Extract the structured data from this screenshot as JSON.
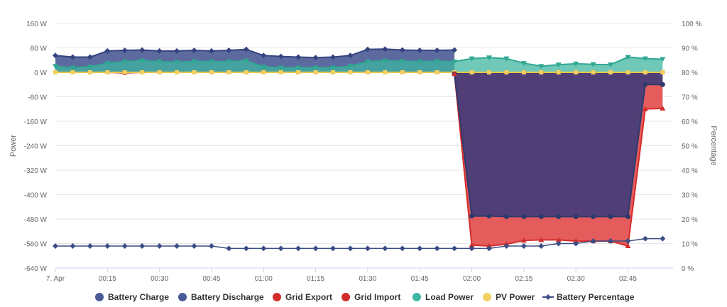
{
  "chart_data": {
    "type": "area",
    "title": "",
    "y_left": {
      "label": "Power",
      "range": [
        -640,
        160
      ],
      "ticks": [
        "160 W",
        "80 W",
        "0 W",
        "-80 W",
        "-160 W",
        "-240 W",
        "-320 W",
        "-400 W",
        "-480 W",
        "-560 W",
        "-640 W"
      ],
      "tick_values": [
        160,
        80,
        0,
        -80,
        -160,
        -240,
        -320,
        -400,
        -480,
        -560,
        -640
      ]
    },
    "y_right": {
      "label": "Percentage",
      "range": [
        0,
        100
      ],
      "ticks": [
        "100 %",
        "90 %",
        "80 %",
        "70 %",
        "60 %",
        "50 %",
        "40 %",
        "30 %",
        "20 %",
        "10 %",
        "0 %"
      ],
      "tick_values": [
        100,
        90,
        80,
        70,
        60,
        50,
        40,
        30,
        20,
        10,
        0
      ]
    },
    "x_axis": {
      "unit": "minutes after 00:00",
      "range": [
        0,
        178
      ],
      "ticks": [
        "7. Apr",
        "00:15",
        "00:30",
        "00:45",
        "01:00",
        "01:15",
        "01:30",
        "01:45",
        "02:00",
        "02:15",
        "02:30",
        "02:45"
      ],
      "tick_values": [
        0,
        15,
        30,
        45,
        60,
        75,
        90,
        105,
        120,
        135,
        150,
        165
      ]
    },
    "series": [
      {
        "name": "Battery Charge",
        "color": "#3b3b7a",
        "kind": "area-negative",
        "x": [
          115,
          120,
          125,
          130,
          135,
          140,
          145,
          150,
          155,
          160,
          165,
          170,
          175
        ],
        "values": [
          -5,
          -470,
          -470,
          -472,
          -472,
          -472,
          -472,
          -472,
          -472,
          -472,
          -472,
          -40,
          -40
        ]
      },
      {
        "name": "Battery Discharge",
        "color": "#4a5a96",
        "kind": "area",
        "x": [
          0,
          5,
          10,
          15,
          20,
          25,
          30,
          35,
          40,
          45,
          50,
          55,
          60,
          65,
          70,
          75,
          80,
          85,
          90,
          95,
          100,
          105,
          110,
          115
        ],
        "values": [
          55,
          50,
          50,
          70,
          72,
          73,
          70,
          70,
          72,
          70,
          72,
          75,
          55,
          52,
          50,
          48,
          50,
          55,
          75,
          76,
          73,
          72,
          72,
          73
        ]
      },
      {
        "name": "Grid Export",
        "color": "#cc3333",
        "kind": "line",
        "x": [
          0,
          5,
          10,
          15,
          20,
          25,
          30,
          35,
          40,
          45,
          50,
          55,
          60,
          65,
          70,
          75,
          80,
          85,
          90,
          95,
          100,
          105,
          110,
          115,
          120,
          125,
          130,
          135,
          140,
          145,
          150,
          155,
          160,
          165,
          170,
          175
        ],
        "values": [
          0,
          0,
          0,
          0,
          -2,
          0,
          0,
          0,
          0,
          0,
          0,
          0,
          0,
          0,
          0,
          0,
          0,
          0,
          0,
          0,
          0,
          0,
          0,
          0,
          0,
          0,
          0,
          0,
          0,
          0,
          0,
          0,
          0,
          0,
          0,
          0
        ]
      },
      {
        "name": "Grid Import",
        "color": "#e04040",
        "kind": "area-negative",
        "x": [
          115,
          120,
          125,
          130,
          135,
          140,
          145,
          150,
          155,
          160,
          165,
          170,
          175
        ],
        "values": [
          -5,
          -565,
          -568,
          -562,
          -550,
          -548,
          -548,
          -552,
          -552,
          -552,
          -568,
          -120,
          -118
        ]
      },
      {
        "name": "Load Power",
        "color": "#3fb6a0",
        "kind": "area",
        "x": [
          0,
          5,
          10,
          15,
          20,
          25,
          30,
          35,
          40,
          45,
          50,
          55,
          60,
          65,
          70,
          75,
          80,
          85,
          90,
          95,
          100,
          105,
          110,
          115,
          120,
          125,
          130,
          135,
          140,
          145,
          150,
          155,
          160,
          165,
          170,
          175
        ],
        "values": [
          20,
          15,
          18,
          30,
          35,
          38,
          35,
          33,
          36,
          35,
          35,
          38,
          18,
          15,
          15,
          15,
          15,
          20,
          35,
          38,
          36,
          35,
          36,
          35,
          45,
          48,
          45,
          30,
          20,
          25,
          28,
          26,
          25,
          50,
          45,
          43
        ]
      },
      {
        "name": "PV Power",
        "color": "#f0d060",
        "kind": "line",
        "x": [
          0,
          5,
          10,
          15,
          20,
          25,
          30,
          35,
          40,
          45,
          50,
          55,
          60,
          65,
          70,
          75,
          80,
          85,
          90,
          95,
          100,
          105,
          110,
          115,
          120,
          125,
          130,
          135,
          140,
          145,
          150,
          155,
          160,
          165,
          170,
          175
        ],
        "values": [
          0,
          0,
          0,
          0,
          0,
          0,
          0,
          0,
          0,
          0,
          0,
          0,
          0,
          0,
          0,
          0,
          0,
          0,
          0,
          0,
          0,
          0,
          0,
          0,
          0,
          0,
          0,
          0,
          0,
          0,
          0,
          0,
          0,
          0,
          0,
          0
        ]
      },
      {
        "name": "Battery Percentage",
        "color": "#3b4d85",
        "kind": "line-right-axis",
        "x": [
          0,
          5,
          10,
          15,
          20,
          25,
          30,
          35,
          40,
          45,
          50,
          55,
          60,
          65,
          70,
          75,
          80,
          85,
          90,
          95,
          100,
          105,
          110,
          115,
          120,
          125,
          130,
          135,
          140,
          145,
          150,
          155,
          160,
          165,
          170,
          175
        ],
        "values": [
          9,
          9,
          9,
          9,
          9,
          9,
          9,
          9,
          9,
          9,
          8,
          8,
          8,
          8,
          8,
          8,
          8,
          8,
          8,
          8,
          8,
          8,
          8,
          8,
          8,
          8,
          9,
          9,
          9,
          10,
          10,
          11,
          11,
          11,
          12,
          12
        ]
      }
    ],
    "legend": {
      "position": "bottom",
      "items": [
        "Battery Charge",
        "Battery Discharge",
        "Grid Export",
        "Grid Import",
        "Load Power",
        "PV Power",
        "Battery Percentage"
      ]
    }
  }
}
